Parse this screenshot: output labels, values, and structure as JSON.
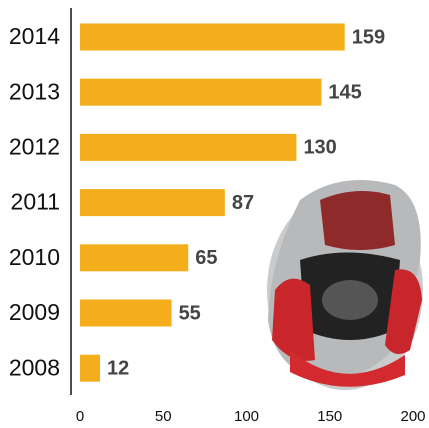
{
  "chart_data": {
    "type": "bar",
    "orientation": "horizontal",
    "categories": [
      "2014",
      "2013",
      "2012",
      "2011",
      "2010",
      "2009",
      "2008"
    ],
    "values": [
      159,
      145,
      130,
      87,
      65,
      55,
      12
    ],
    "color": "#f5ae1b",
    "xlim": [
      0,
      200
    ],
    "xticks": [
      0,
      50,
      100,
      150,
      200
    ],
    "grid": false
  }
}
